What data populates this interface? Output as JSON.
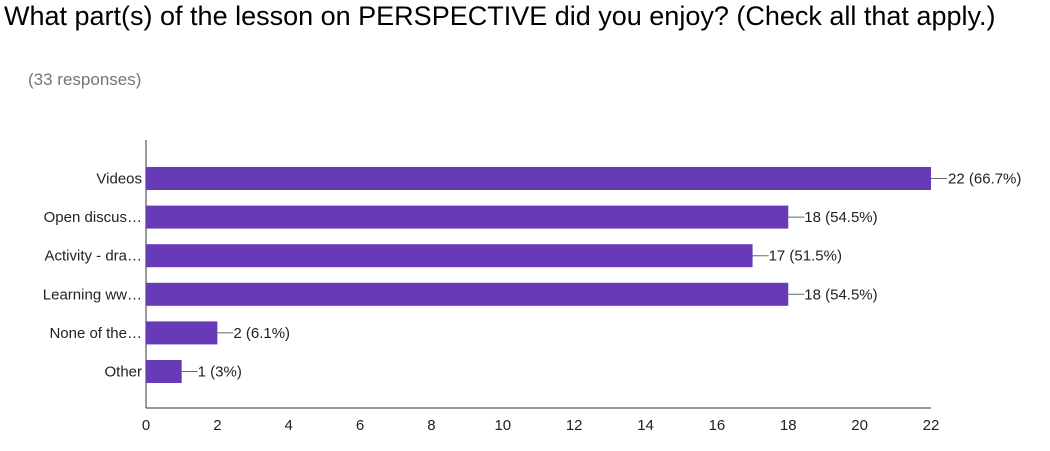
{
  "title": "What part(s) of the lesson on PERSPECTIVE did you enjoy? (Check all that apply.)",
  "subtitle": "(33 responses)",
  "chart_data": {
    "type": "bar",
    "orientation": "horizontal",
    "categories": [
      "Videos",
      "Open discus…",
      "Activity - dra…",
      "Learning ww…",
      "None of the…",
      "Other"
    ],
    "values": [
      22,
      18,
      17,
      18,
      2,
      1
    ],
    "labels": [
      "22 (66.7%)",
      "18 (54.5%)",
      "17 (51.5%)",
      "18 (54.5%)",
      "2 (6.1%)",
      "1 (3%)"
    ],
    "xlim": [
      0,
      22
    ],
    "xticks": [
      0,
      2,
      4,
      6,
      8,
      10,
      12,
      14,
      16,
      18,
      20,
      22
    ],
    "grid": false,
    "color": "#673ab7"
  }
}
